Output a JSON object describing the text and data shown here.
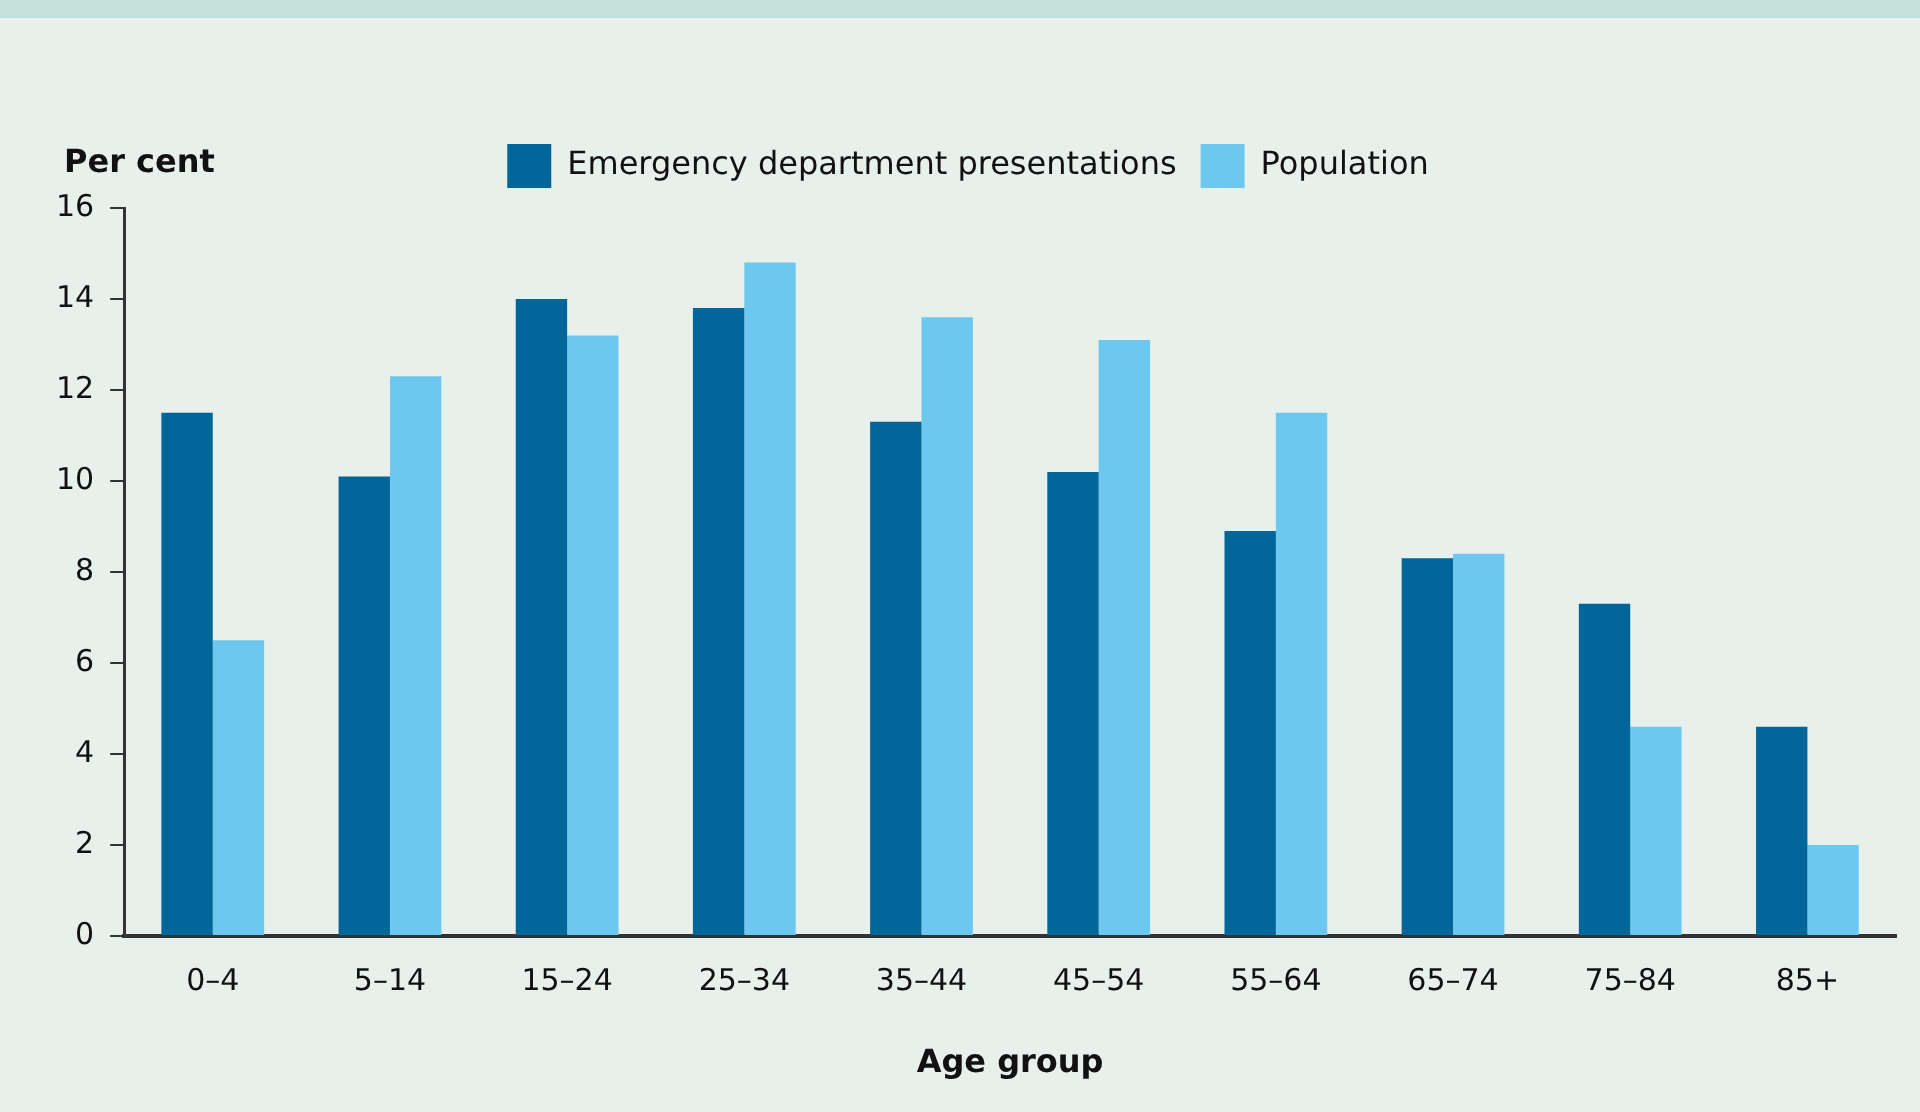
{
  "chart_data": {
    "type": "bar",
    "ylabel": "Per cent",
    "xlabel": "Age group",
    "categories": [
      "0–4",
      "5–14",
      "15–24",
      "25–34",
      "35–44",
      "45–54",
      "55–64",
      "65–74",
      "75–84",
      "85+"
    ],
    "series": [
      {
        "name": "Emergency department presentations",
        "color": "#006699",
        "values": [
          11.5,
          10.1,
          14.0,
          13.8,
          11.3,
          10.2,
          8.9,
          8.3,
          7.3,
          4.6
        ]
      },
      {
        "name": "Population",
        "color": "#6cc8ef",
        "values": [
          6.5,
          12.3,
          13.2,
          14.8,
          13.6,
          13.1,
          11.5,
          8.4,
          4.6,
          2.0
        ]
      }
    ],
    "ylim": [
      0,
      16
    ],
    "yticks": [
      0,
      2,
      4,
      6,
      8,
      10,
      12,
      14,
      16
    ],
    "grid": false,
    "legend": "top"
  }
}
